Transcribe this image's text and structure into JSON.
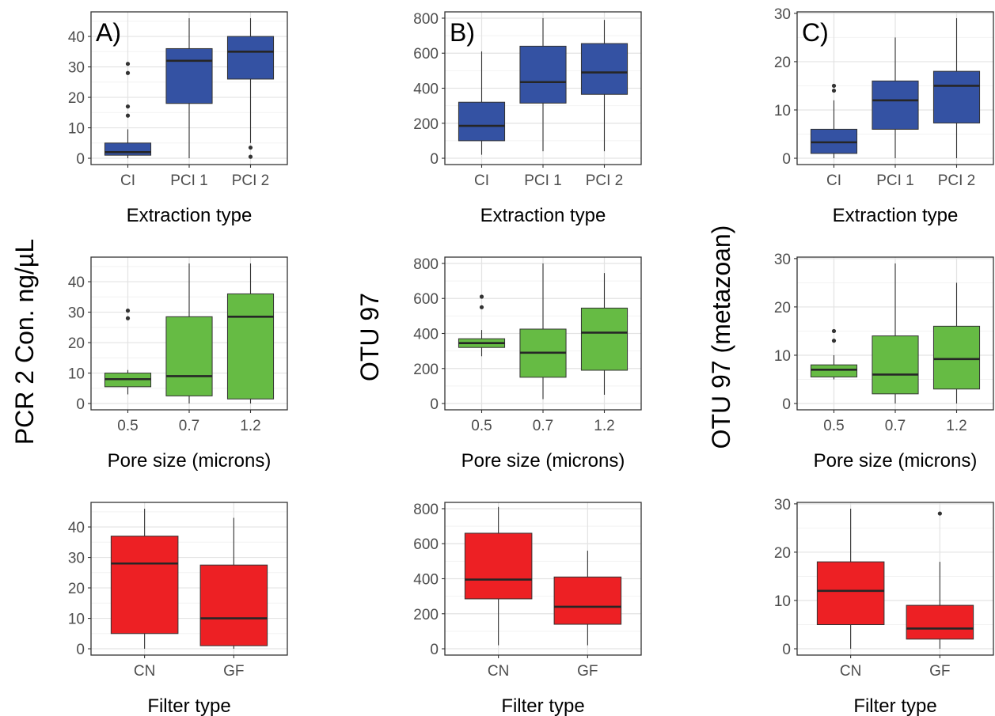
{
  "row_titles": {
    "left": "PCR 2 Con. ng/µL",
    "middle": "OTU 97",
    "right": "OTU 97 (metazoan)"
  },
  "colors": {
    "extraction": "#3452a3",
    "pore": "#66bb44",
    "filter": "#ed2024",
    "median": "#262626",
    "whisker": "#333333",
    "outlier": "#333333",
    "grid_major": "#e3e3e3",
    "grid_minor": "#f2f2f2",
    "panel_border": "#333333"
  },
  "chart_data": [
    {
      "type": "box",
      "tag": "A)",
      "xlabel": "Extraction type",
      "ylim": [
        0,
        46
      ],
      "yticks": [
        0,
        10,
        20,
        30,
        40
      ],
      "fill": "extraction",
      "categories": [
        "CI",
        "PCI 1",
        "PCI 2"
      ],
      "boxes": [
        {
          "min": 0,
          "q1": 1,
          "median": 2,
          "q3": 5,
          "max": 9.5,
          "outliers": [
            14,
            17,
            28,
            31
          ]
        },
        {
          "min": 0,
          "q1": 18,
          "median": 32,
          "q3": 36,
          "max": 46,
          "outliers": []
        },
        {
          "min": 5,
          "q1": 26,
          "median": 35,
          "q3": 40,
          "max": 46,
          "outliers": [
            0.5,
            3.5
          ]
        }
      ]
    },
    {
      "type": "box",
      "tag": "B)",
      "xlabel": "Extraction type",
      "ylim": [
        0,
        800
      ],
      "yticks": [
        0,
        200,
        400,
        600,
        800
      ],
      "fill": "extraction",
      "categories": [
        "CI",
        "PCI 1",
        "PCI 2"
      ],
      "boxes": [
        {
          "min": 20,
          "q1": 100,
          "median": 185,
          "q3": 320,
          "max": 610,
          "outliers": []
        },
        {
          "min": 40,
          "q1": 315,
          "median": 435,
          "q3": 640,
          "max": 800,
          "outliers": []
        },
        {
          "min": 40,
          "q1": 365,
          "median": 490,
          "q3": 655,
          "max": 790,
          "outliers": []
        }
      ]
    },
    {
      "type": "box",
      "tag": "C)",
      "xlabel": "Extraction type",
      "ylim": [
        0,
        29
      ],
      "yticks": [
        0,
        10,
        20,
        30
      ],
      "fill": "extraction",
      "categories": [
        "CI",
        "PCI 1",
        "PCI 2"
      ],
      "boxes": [
        {
          "min": 0,
          "q1": 1,
          "median": 3.3,
          "q3": 6,
          "max": 12,
          "outliers": [
            14,
            15
          ]
        },
        {
          "min": 0,
          "q1": 6,
          "median": 12,
          "q3": 16,
          "max": 25,
          "outliers": []
        },
        {
          "min": 0,
          "q1": 7.3,
          "median": 15,
          "q3": 18,
          "max": 29,
          "outliers": []
        }
      ]
    },
    {
      "type": "box",
      "tag": "",
      "xlabel": "Pore size (microns)",
      "ylim": [
        0,
        46
      ],
      "yticks": [
        0,
        10,
        20,
        30,
        40
      ],
      "fill": "pore",
      "categories": [
        "0.5",
        "0.7",
        "1.2"
      ],
      "boxes": [
        {
          "min": 3,
          "q1": 5.5,
          "median": 8,
          "q3": 10,
          "max": 11,
          "outliers": [
            28,
            30.5
          ]
        },
        {
          "min": 0,
          "q1": 2.5,
          "median": 9,
          "q3": 28.5,
          "max": 46,
          "outliers": []
        },
        {
          "min": 0,
          "q1": 1.5,
          "median": 28.5,
          "q3": 36,
          "max": 46,
          "outliers": []
        }
      ]
    },
    {
      "type": "box",
      "tag": "",
      "xlabel": "Pore size (microns)",
      "ylim": [
        0,
        800
      ],
      "yticks": [
        0,
        200,
        400,
        600,
        800
      ],
      "fill": "pore",
      "categories": [
        "0.5",
        "0.7",
        "1.2"
      ],
      "boxes": [
        {
          "min": 270,
          "q1": 320,
          "median": 345,
          "q3": 370,
          "max": 420,
          "outliers": [
            550,
            610
          ]
        },
        {
          "min": 25,
          "q1": 150,
          "median": 290,
          "q3": 425,
          "max": 800,
          "outliers": []
        },
        {
          "min": 50,
          "q1": 190,
          "median": 405,
          "q3": 545,
          "max": 745,
          "outliers": []
        }
      ]
    },
    {
      "type": "box",
      "tag": "",
      "xlabel": "Pore size (microns)",
      "ylim": [
        0,
        29
      ],
      "yticks": [
        0,
        10,
        20,
        30
      ],
      "fill": "pore",
      "categories": [
        "0.5",
        "0.7",
        "1.2"
      ],
      "boxes": [
        {
          "min": 5,
          "q1": 5.5,
          "median": 7,
          "q3": 8,
          "max": 10,
          "outliers": [
            13,
            15
          ]
        },
        {
          "min": 0,
          "q1": 2,
          "median": 6,
          "q3": 14,
          "max": 29,
          "outliers": []
        },
        {
          "min": 0,
          "q1": 3,
          "median": 9.2,
          "q3": 16,
          "max": 25,
          "outliers": []
        }
      ]
    },
    {
      "type": "box",
      "tag": "",
      "xlabel": "Filter type",
      "ylim": [
        0,
        46
      ],
      "yticks": [
        0,
        10,
        20,
        30,
        40
      ],
      "fill": "filter",
      "categories": [
        "CN",
        "GF"
      ],
      "boxes": [
        {
          "min": 0,
          "q1": 5,
          "median": 28,
          "q3": 37,
          "max": 46,
          "outliers": []
        },
        {
          "min": 0,
          "q1": 1,
          "median": 10,
          "q3": 27.5,
          "max": 43,
          "outliers": []
        }
      ]
    },
    {
      "type": "box",
      "tag": "",
      "xlabel": "Filter type",
      "ylim": [
        0,
        800
      ],
      "yticks": [
        0,
        200,
        400,
        600,
        800
      ],
      "fill": "filter",
      "categories": [
        "CN",
        "GF"
      ],
      "boxes": [
        {
          "min": 20,
          "q1": 285,
          "median": 395,
          "q3": 660,
          "max": 810,
          "outliers": []
        },
        {
          "min": 20,
          "q1": 140,
          "median": 240,
          "q3": 410,
          "max": 560,
          "outliers": []
        }
      ]
    },
    {
      "type": "box",
      "tag": "",
      "xlabel": "Filter type",
      "ylim": [
        0,
        29
      ],
      "yticks": [
        0,
        10,
        20,
        30
      ],
      "fill": "filter",
      "categories": [
        "CN",
        "GF"
      ],
      "boxes": [
        {
          "min": 0,
          "q1": 5,
          "median": 12,
          "q3": 18,
          "max": 29,
          "outliers": []
        },
        {
          "min": 0,
          "q1": 2,
          "median": 4.2,
          "q3": 9,
          "max": 18,
          "outliers": [
            28
          ]
        }
      ]
    }
  ]
}
